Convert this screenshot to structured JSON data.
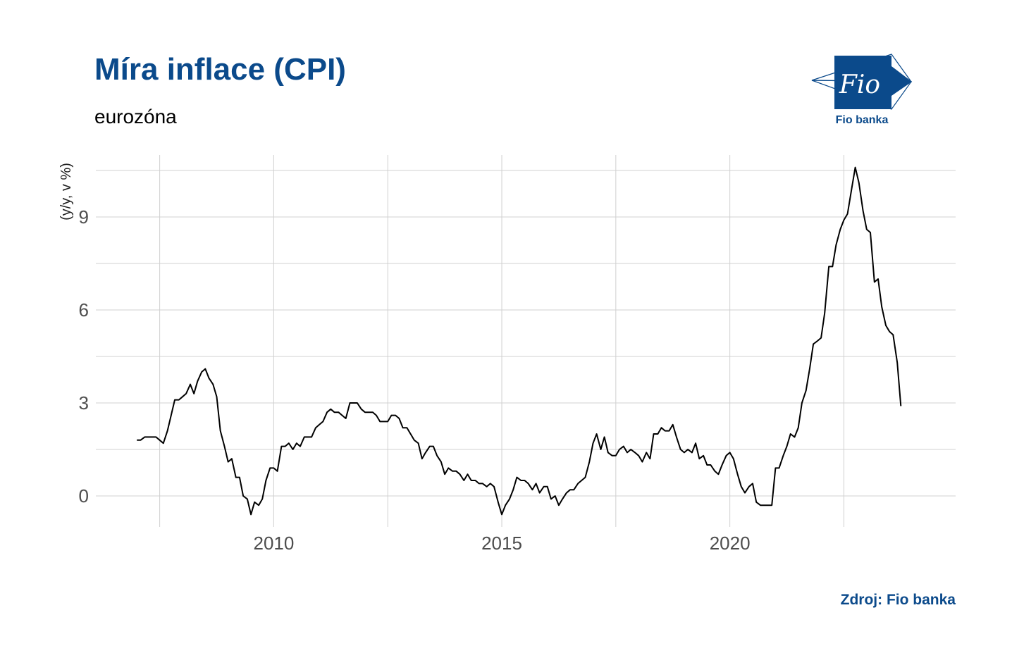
{
  "header": {
    "title": "Míra inflace (CPI)",
    "subtitle": "eurozóna"
  },
  "logo": {
    "mark_text": "Fio",
    "caption": "Fio banka",
    "color": "#0b4a8b"
  },
  "footer": {
    "source": "Zdroj: Fio banka"
  },
  "chart_data": {
    "type": "line",
    "ylabel": "(y/y, v %)",
    "xlabel": "",
    "xlim": [
      2006.1,
      2024.95
    ],
    "ylim": [
      -1.0,
      11.0
    ],
    "x_ticks": [
      2010,
      2015,
      2020
    ],
    "y_ticks": [
      0,
      3,
      6,
      9
    ],
    "grid": true,
    "line_color": "#000000",
    "series": [
      {
        "x": [
          2007.0,
          2007.08,
          2007.17,
          2007.25,
          2007.33,
          2007.42,
          2007.5,
          2007.58,
          2007.67,
          2007.75,
          2007.83,
          2007.92,
          2008.0,
          2008.08,
          2008.17,
          2008.25,
          2008.33,
          2008.42,
          2008.5,
          2008.58,
          2008.67,
          2008.75,
          2008.83,
          2008.92,
          2009.0,
          2009.08,
          2009.17,
          2009.25,
          2009.33,
          2009.42,
          2009.5,
          2009.58,
          2009.67,
          2009.75,
          2009.83,
          2009.92,
          2010.0,
          2010.08,
          2010.17,
          2010.25,
          2010.33,
          2010.42,
          2010.5,
          2010.58,
          2010.67,
          2010.75,
          2010.83,
          2010.92,
          2011.0,
          2011.08,
          2011.17,
          2011.25,
          2011.33,
          2011.42,
          2011.5,
          2011.58,
          2011.67,
          2011.75,
          2011.83,
          2011.92,
          2012.0,
          2012.08,
          2012.17,
          2012.25,
          2012.33,
          2012.42,
          2012.5,
          2012.58,
          2012.67,
          2012.75,
          2012.83,
          2012.92,
          2013.0,
          2013.08,
          2013.17,
          2013.25,
          2013.33,
          2013.42,
          2013.5,
          2013.58,
          2013.67,
          2013.75,
          2013.83,
          2013.92,
          2014.0,
          2014.08,
          2014.17,
          2014.25,
          2014.33,
          2014.42,
          2014.5,
          2014.58,
          2014.67,
          2014.75,
          2014.83,
          2014.92,
          2015.0,
          2015.08,
          2015.17,
          2015.25,
          2015.33,
          2015.42,
          2015.5,
          2015.58,
          2015.67,
          2015.75,
          2015.83,
          2015.92,
          2016.0,
          2016.08,
          2016.17,
          2016.25,
          2016.33,
          2016.42,
          2016.5,
          2016.58,
          2016.67,
          2016.75,
          2016.83,
          2016.92,
          2017.0,
          2017.08,
          2017.17,
          2017.25,
          2017.33,
          2017.42,
          2017.5,
          2017.58,
          2017.67,
          2017.75,
          2017.83,
          2017.92,
          2018.0,
          2018.08,
          2018.17,
          2018.25,
          2018.33,
          2018.42,
          2018.5,
          2018.58,
          2018.67,
          2018.75,
          2018.83,
          2018.92,
          2019.0,
          2019.08,
          2019.17,
          2019.25,
          2019.33,
          2019.42,
          2019.5,
          2019.58,
          2019.67,
          2019.75,
          2019.83,
          2019.92,
          2020.0,
          2020.08,
          2020.17,
          2020.25,
          2020.33,
          2020.42,
          2020.5,
          2020.58,
          2020.67,
          2020.75,
          2020.83,
          2020.92,
          2021.0,
          2021.08,
          2021.17,
          2021.25,
          2021.33,
          2021.42,
          2021.5,
          2021.58,
          2021.67,
          2021.75,
          2021.83,
          2021.92,
          2022.0,
          2022.08,
          2022.17,
          2022.25,
          2022.33,
          2022.42,
          2022.5,
          2022.58,
          2022.67,
          2022.75,
          2022.83,
          2022.92,
          2023.0,
          2023.08,
          2023.17,
          2023.25,
          2023.33,
          2023.42,
          2023.5,
          2023.58,
          2023.67,
          2023.75
        ],
        "y": [
          1.8,
          1.8,
          1.9,
          1.9,
          1.9,
          1.9,
          1.8,
          1.7,
          2.1,
          2.6,
          3.1,
          3.1,
          3.2,
          3.3,
          3.6,
          3.3,
          3.7,
          4.0,
          4.1,
          3.8,
          3.6,
          3.2,
          2.1,
          1.6,
          1.1,
          1.2,
          0.6,
          0.6,
          0.0,
          -0.1,
          -0.6,
          -0.2,
          -0.3,
          -0.1,
          0.5,
          0.9,
          0.9,
          0.8,
          1.6,
          1.6,
          1.7,
          1.5,
          1.7,
          1.6,
          1.9,
          1.9,
          1.9,
          2.2,
          2.3,
          2.4,
          2.7,
          2.8,
          2.7,
          2.7,
          2.6,
          2.5,
          3.0,
          3.0,
          3.0,
          2.8,
          2.7,
          2.7,
          2.7,
          2.6,
          2.4,
          2.4,
          2.4,
          2.6,
          2.6,
          2.5,
          2.2,
          2.2,
          2.0,
          1.8,
          1.7,
          1.2,
          1.4,
          1.6,
          1.6,
          1.3,
          1.1,
          0.7,
          0.9,
          0.8,
          0.8,
          0.7,
          0.5,
          0.7,
          0.5,
          0.5,
          0.4,
          0.4,
          0.3,
          0.4,
          0.3,
          -0.2,
          -0.6,
          -0.3,
          -0.1,
          0.2,
          0.6,
          0.5,
          0.5,
          0.4,
          0.2,
          0.4,
          0.1,
          0.3,
          0.3,
          -0.1,
          0.0,
          -0.3,
          -0.1,
          0.1,
          0.2,
          0.2,
          0.4,
          0.5,
          0.6,
          1.1,
          1.7,
          2.0,
          1.5,
          1.9,
          1.4,
          1.3,
          1.3,
          1.5,
          1.6,
          1.4,
          1.5,
          1.4,
          1.3,
          1.1,
          1.4,
          1.2,
          2.0,
          2.0,
          2.2,
          2.1,
          2.1,
          2.3,
          1.9,
          1.5,
          1.4,
          1.5,
          1.4,
          1.7,
          1.2,
          1.3,
          1.0,
          1.0,
          0.8,
          0.7,
          1.0,
          1.3,
          1.4,
          1.2,
          0.7,
          0.3,
          0.1,
          0.3,
          0.4,
          -0.2,
          -0.3,
          -0.3,
          -0.3,
          -0.3,
          0.9,
          0.9,
          1.3,
          1.6,
          2.0,
          1.9,
          2.2,
          3.0,
          3.4,
          4.1,
          4.9,
          5.0,
          5.1,
          5.9,
          7.4,
          7.4,
          8.1,
          8.6,
          8.9,
          9.1,
          9.9,
          10.6,
          10.1,
          9.2,
          8.6,
          8.5,
          6.9,
          7.0,
          6.1,
          5.5,
          5.3,
          5.2,
          4.3,
          2.9
        ]
      }
    ]
  }
}
